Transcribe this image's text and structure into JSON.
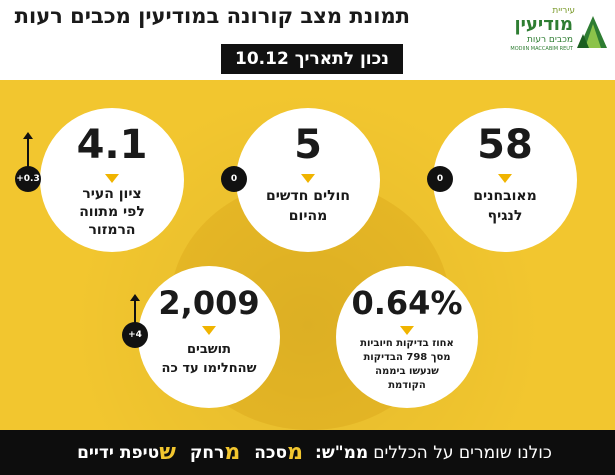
{
  "header": {
    "title": "תמונת מצב קורונה במודיעין מכבים רעות",
    "date": "נכון לתאריך 10.12"
  },
  "logo": {
    "top": "עיריית",
    "main": "מודיעין",
    "sub": "מכבים רעות",
    "en": "MODIIN MACCABIM REUT"
  },
  "stats": {
    "quarantined": {
      "value": "58",
      "label_line1": "מאובחנים",
      "label_line2": "לנגיף",
      "change": "0"
    },
    "new_patients": {
      "value": "5",
      "label_line1": "חולים חדשים",
      "label_line2": "מהיום",
      "change": "0"
    },
    "city_score": {
      "value": "4.1",
      "label_line1": "ציון העיר",
      "label_line2": "לפי מתווה",
      "label_line3": "הרמזור",
      "change": "+0.3"
    },
    "positive_rate": {
      "value": "0.64%",
      "label_line1": "אחוז בדיקות חיוביות",
      "label_line2": "מסך 798 הבדיקות",
      "label_line3": "שנעשו ביממה",
      "label_line4": "הקודמת"
    },
    "recovered": {
      "value": "2,009",
      "label_line1": "תושבים",
      "label_line2": "שהחלימו עד כה",
      "change": "+4"
    }
  },
  "footer": {
    "intro": "כולנו שומרים על הכללים",
    "rules": "ממ\"ש:",
    "m1_letter": "מ",
    "m1_rest": "סכה",
    "m2_letter": "מ",
    "m2_rest": "רחק",
    "s_letter": "ש",
    "s_rest": "טיפת ידיים"
  },
  "colors": {
    "background_yellow": "#f2c62f",
    "triangle_yellow": "#f0b400",
    "dark": "#111111",
    "logo_green": "#2e7d32"
  }
}
